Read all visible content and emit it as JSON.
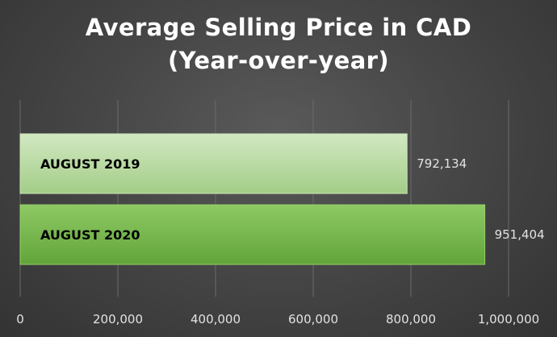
{
  "chart_data": {
    "type": "bar",
    "orientation": "horizontal",
    "title_lines": [
      "Average Selling Price in CAD",
      "(Year-over-year)"
    ],
    "categories": [
      "AUGUST 2019",
      "AUGUST 2020"
    ],
    "values": [
      792134,
      951404
    ],
    "data_labels": [
      "792,134",
      "951,404"
    ],
    "xlim": [
      0,
      1000000
    ],
    "x_ticks": [
      0,
      200000,
      400000,
      600000,
      800000,
      1000000
    ],
    "x_tick_labels": [
      "0",
      "200,000",
      "400,000",
      "600,000",
      "800,000",
      "1,000,000"
    ],
    "xlabel": "",
    "ylabel": "",
    "grid": "vertical gridlines on",
    "legend": "none",
    "colors": {
      "background": "#474747",
      "bar_2019": "#a9d08e",
      "bar_2020": "#70ad47",
      "gridline": "#6b6b6b",
      "text": "#ffffff"
    }
  }
}
